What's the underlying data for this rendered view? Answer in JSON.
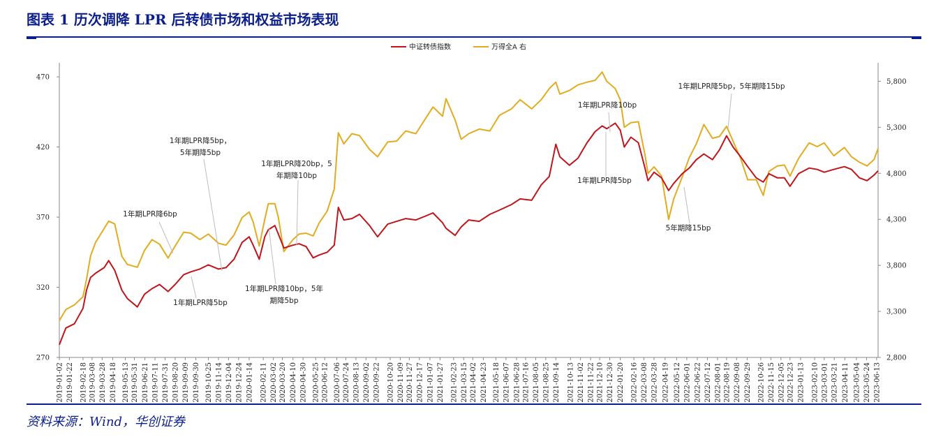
{
  "header": {
    "title": "图表 1  历次调降 LPR 后转债市场和权益市场表现"
  },
  "footer": {
    "source": "资料来源：Wind，华创证券"
  },
  "colors": {
    "cb": "#c0151b",
    "wind": "#e3ac20",
    "accent": "#0b1f8c"
  },
  "chart_data": {
    "type": "line",
    "legend_position": "top-center",
    "grid": false,
    "series": [
      {
        "name": "中证转债指数",
        "axis": "left",
        "points": [
          [
            "2019-01-02",
            279
          ],
          [
            "2019-01-15",
            291
          ],
          [
            "2019-02-01",
            294
          ],
          [
            "2019-02-18",
            305
          ],
          [
            "2019-02-25",
            318
          ],
          [
            "2019-03-05",
            327
          ],
          [
            "2019-03-15",
            330
          ],
          [
            "2019-04-01",
            334
          ],
          [
            "2019-04-10",
            339
          ],
          [
            "2019-04-22",
            332
          ],
          [
            "2019-05-06",
            318
          ],
          [
            "2019-05-17",
            312
          ],
          [
            "2019-06-06",
            306
          ],
          [
            "2019-06-20",
            315
          ],
          [
            "2019-07-05",
            319
          ],
          [
            "2019-07-20",
            322
          ],
          [
            "2019-08-06",
            317
          ],
          [
            "2019-08-20",
            322
          ],
          [
            "2019-09-06",
            329
          ],
          [
            "2019-09-20",
            331
          ],
          [
            "2019-10-08",
            333
          ],
          [
            "2019-10-25",
            336
          ],
          [
            "2019-11-14",
            333
          ],
          [
            "2019-11-29",
            334
          ],
          [
            "2019-12-15",
            340
          ],
          [
            "2019-12-31",
            352
          ],
          [
            "2020-01-14",
            356
          ],
          [
            "2020-01-22",
            350
          ],
          [
            "2020-02-03",
            340
          ],
          [
            "2020-02-14",
            356
          ],
          [
            "2020-02-21",
            361
          ],
          [
            "2020-03-05",
            364
          ],
          [
            "2020-03-12",
            358
          ],
          [
            "2020-03-23",
            348
          ],
          [
            "2020-04-10",
            350
          ],
          [
            "2020-04-22",
            351
          ],
          [
            "2020-05-06",
            349
          ],
          [
            "2020-05-20",
            341
          ],
          [
            "2020-06-01",
            343
          ],
          [
            "2020-06-17",
            345
          ],
          [
            "2020-07-01",
            350
          ],
          [
            "2020-07-09",
            377
          ],
          [
            "2020-07-20",
            368
          ],
          [
            "2020-08-05",
            369
          ],
          [
            "2020-08-20",
            372
          ],
          [
            "2020-09-09",
            364
          ],
          [
            "2020-09-25",
            356
          ],
          [
            "2020-10-15",
            365
          ],
          [
            "2020-11-02",
            367
          ],
          [
            "2020-11-20",
            369
          ],
          [
            "2020-12-10",
            368
          ],
          [
            "2020-12-31",
            371
          ],
          [
            "2021-01-13",
            373
          ],
          [
            "2021-02-01",
            366
          ],
          [
            "2021-02-08",
            362
          ],
          [
            "2021-02-26",
            357
          ],
          [
            "2021-03-10",
            363
          ],
          [
            "2021-03-25",
            368
          ],
          [
            "2021-04-15",
            367
          ],
          [
            "2021-05-06",
            372
          ],
          [
            "2021-05-25",
            375
          ],
          [
            "2021-06-18",
            379
          ],
          [
            "2021-07-05",
            383
          ],
          [
            "2021-07-28",
            382
          ],
          [
            "2021-08-16",
            393
          ],
          [
            "2021-09-01",
            399
          ],
          [
            "2021-09-14",
            422
          ],
          [
            "2021-09-22",
            413
          ],
          [
            "2021-10-11",
            407
          ],
          [
            "2021-10-28",
            412
          ],
          [
            "2021-11-15",
            423
          ],
          [
            "2021-12-01",
            431
          ],
          [
            "2021-12-15",
            435
          ],
          [
            "2021-12-24",
            433
          ],
          [
            "2022-01-10",
            437
          ],
          [
            "2022-01-20",
            432
          ],
          [
            "2022-01-28",
            420
          ],
          [
            "2022-02-10",
            427
          ],
          [
            "2022-02-25",
            423
          ],
          [
            "2022-03-10",
            405
          ],
          [
            "2022-03-16",
            396
          ],
          [
            "2022-03-28",
            402
          ],
          [
            "2022-04-12",
            398
          ],
          [
            "2022-04-26",
            389
          ],
          [
            "2022-05-06",
            394
          ],
          [
            "2022-05-23",
            401
          ],
          [
            "2022-06-06",
            405
          ],
          [
            "2022-06-20",
            411
          ],
          [
            "2022-07-05",
            415
          ],
          [
            "2022-07-22",
            411
          ],
          [
            "2022-08-05",
            418
          ],
          [
            "2022-08-19",
            428
          ],
          [
            "2022-09-01",
            420
          ],
          [
            "2022-09-16",
            413
          ],
          [
            "2022-09-30",
            406
          ],
          [
            "2022-10-17",
            398
          ],
          [
            "2022-10-31",
            395
          ],
          [
            "2022-11-11",
            401
          ],
          [
            "2022-11-28",
            398
          ],
          [
            "2022-12-12",
            398
          ],
          [
            "2022-12-23",
            392
          ],
          [
            "2023-01-09",
            401
          ],
          [
            "2023-01-30",
            405
          ],
          [
            "2023-02-15",
            404
          ],
          [
            "2023-03-01",
            402
          ],
          [
            "2023-03-20",
            404
          ],
          [
            "2023-04-10",
            406
          ],
          [
            "2023-04-24",
            404
          ],
          [
            "2023-05-10",
            398
          ],
          [
            "2023-05-25",
            396
          ],
          [
            "2023-06-08",
            400
          ],
          [
            "2023-06-16",
            403
          ]
        ]
      },
      {
        "name": "万得全A 右",
        "axis": "right",
        "points": [
          [
            "2019-01-02",
            3200
          ],
          [
            "2019-01-15",
            3320
          ],
          [
            "2019-02-01",
            3370
          ],
          [
            "2019-02-18",
            3460
          ],
          [
            "2019-02-25",
            3650
          ],
          [
            "2019-03-05",
            3900
          ],
          [
            "2019-03-15",
            4050
          ],
          [
            "2019-04-01",
            4200
          ],
          [
            "2019-04-10",
            4280
          ],
          [
            "2019-04-22",
            4250
          ],
          [
            "2019-05-06",
            3900
          ],
          [
            "2019-05-17",
            3810
          ],
          [
            "2019-06-06",
            3780
          ],
          [
            "2019-06-20",
            3960
          ],
          [
            "2019-07-05",
            4080
          ],
          [
            "2019-07-20",
            4030
          ],
          [
            "2019-08-06",
            3880
          ],
          [
            "2019-08-20",
            4010
          ],
          [
            "2019-09-06",
            4160
          ],
          [
            "2019-09-20",
            4150
          ],
          [
            "2019-10-08",
            4080
          ],
          [
            "2019-10-25",
            4140
          ],
          [
            "2019-11-14",
            4040
          ],
          [
            "2019-11-29",
            4020
          ],
          [
            "2019-12-15",
            4130
          ],
          [
            "2019-12-31",
            4320
          ],
          [
            "2020-01-14",
            4380
          ],
          [
            "2020-01-22",
            4270
          ],
          [
            "2020-02-03",
            4010
          ],
          [
            "2020-02-14",
            4300
          ],
          [
            "2020-02-21",
            4470
          ],
          [
            "2020-03-05",
            4470
          ],
          [
            "2020-03-12",
            4320
          ],
          [
            "2020-03-23",
            3950
          ],
          [
            "2020-04-10",
            4080
          ],
          [
            "2020-04-22",
            4140
          ],
          [
            "2020-05-06",
            4150
          ],
          [
            "2020-05-20",
            4120
          ],
          [
            "2020-06-01",
            4260
          ],
          [
            "2020-06-17",
            4390
          ],
          [
            "2020-07-01",
            4630
          ],
          [
            "2020-07-09",
            5240
          ],
          [
            "2020-07-20",
            5120
          ],
          [
            "2020-08-05",
            5230
          ],
          [
            "2020-08-20",
            5210
          ],
          [
            "2020-09-09",
            5060
          ],
          [
            "2020-09-25",
            4980
          ],
          [
            "2020-10-15",
            5140
          ],
          [
            "2020-11-02",
            5150
          ],
          [
            "2020-11-20",
            5260
          ],
          [
            "2020-12-10",
            5230
          ],
          [
            "2020-12-31",
            5410
          ],
          [
            "2021-01-13",
            5520
          ],
          [
            "2021-02-01",
            5420
          ],
          [
            "2021-02-08",
            5610
          ],
          [
            "2021-02-26",
            5380
          ],
          [
            "2021-03-10",
            5170
          ],
          [
            "2021-03-25",
            5230
          ],
          [
            "2021-04-15",
            5280
          ],
          [
            "2021-05-06",
            5260
          ],
          [
            "2021-05-25",
            5430
          ],
          [
            "2021-06-18",
            5500
          ],
          [
            "2021-07-05",
            5600
          ],
          [
            "2021-07-28",
            5500
          ],
          [
            "2021-08-16",
            5600
          ],
          [
            "2021-09-01",
            5720
          ],
          [
            "2021-09-14",
            5790
          ],
          [
            "2021-09-22",
            5660
          ],
          [
            "2021-10-11",
            5700
          ],
          [
            "2021-10-28",
            5760
          ],
          [
            "2021-11-15",
            5790
          ],
          [
            "2021-12-01",
            5810
          ],
          [
            "2021-12-15",
            5900
          ],
          [
            "2021-12-24",
            5800
          ],
          [
            "2022-01-10",
            5720
          ],
          [
            "2022-01-20",
            5600
          ],
          [
            "2022-01-28",
            5300
          ],
          [
            "2022-02-10",
            5350
          ],
          [
            "2022-02-25",
            5360
          ],
          [
            "2022-03-10",
            5000
          ],
          [
            "2022-03-16",
            4800
          ],
          [
            "2022-03-28",
            4870
          ],
          [
            "2022-04-12",
            4770
          ],
          [
            "2022-04-26",
            4300
          ],
          [
            "2022-05-06",
            4520
          ],
          [
            "2022-05-23",
            4760
          ],
          [
            "2022-06-06",
            4970
          ],
          [
            "2022-06-20",
            5120
          ],
          [
            "2022-07-05",
            5330
          ],
          [
            "2022-07-22",
            5180
          ],
          [
            "2022-08-05",
            5200
          ],
          [
            "2022-08-19",
            5310
          ],
          [
            "2022-09-01",
            5150
          ],
          [
            "2022-09-16",
            4960
          ],
          [
            "2022-09-30",
            4730
          ],
          [
            "2022-10-17",
            4730
          ],
          [
            "2022-10-31",
            4560
          ],
          [
            "2022-11-11",
            4820
          ],
          [
            "2022-11-28",
            4880
          ],
          [
            "2022-12-12",
            4890
          ],
          [
            "2022-12-23",
            4770
          ],
          [
            "2023-01-09",
            4960
          ],
          [
            "2023-01-30",
            5130
          ],
          [
            "2023-02-15",
            5090
          ],
          [
            "2023-03-01",
            5130
          ],
          [
            "2023-03-20",
            4990
          ],
          [
            "2023-04-10",
            5080
          ],
          [
            "2023-04-24",
            4980
          ],
          [
            "2023-05-10",
            4920
          ],
          [
            "2023-05-25",
            4880
          ],
          [
            "2023-06-08",
            4950
          ],
          [
            "2023-06-16",
            5070
          ]
        ]
      }
    ],
    "y_left": {
      "ticks": [
        270,
        320,
        370,
        420,
        470
      ],
      "ylim": [
        270,
        480
      ]
    },
    "y_right": {
      "ticks": [
        2800,
        3300,
        3800,
        4300,
        4800,
        5300,
        5800
      ],
      "ylim": [
        2800,
        6000
      ]
    },
    "x_ticks": [
      "2019-01-02",
      "2019-01-22",
      "2019-02-18",
      "2019-03-08",
      "2019-03-28",
      "2019-04-18",
      "2019-05-13",
      "2019-05-31",
      "2019-06-21",
      "2019-07-11",
      "2019-07-31",
      "2019-08-20",
      "2019-09-09",
      "2019-09-30",
      "2019-10-25",
      "2019-11-14",
      "2019-12-04",
      "2019-12-24",
      "2020-01-14",
      "2020-02-11",
      "2020-03-02",
      "2020-03-20",
      "2020-04-10",
      "2020-04-30",
      "2020-05-25",
      "2020-06-12",
      "2020-07-06",
      "2020-07-24",
      "2020-08-13",
      "2020-09-02",
      "2020-09-22",
      "2020-10-20",
      "2020-11-09",
      "2020-11-27",
      "2020-12-17",
      "2021-01-07",
      "2021-01-27",
      "2021-02-23",
      "2021-03-15",
      "2021-04-02",
      "2021-04-23",
      "2021-05-18",
      "2021-06-07",
      "2021-06-28",
      "2021-07-16",
      "2021-08-05",
      "2021-08-25",
      "2021-09-14",
      "2021-10-13",
      "2021-11-02",
      "2021-11-22",
      "2021-12-10",
      "2021-12-30",
      "2022-01-20",
      "2022-02-16",
      "2022-03-08",
      "2022-03-28",
      "2022-04-19",
      "2022-05-12",
      "2022-06-01",
      "2022-06-22",
      "2022-07-12",
      "2022-08-01",
      "2022-08-19",
      "2022-09-08",
      "2022-09-29",
      "2022-10-26",
      "2022-11-15",
      "2022-12-05",
      "2022-12-23",
      "2023-01-13",
      "2023-02-10",
      "2023-03-01",
      "2023-03-21",
      "2023-04-11",
      "2023-05-04",
      "2023-05-24",
      "2023-06-13"
    ],
    "annotations": [
      {
        "lines": [
          "1年期LPR降6bp"
        ],
        "date": "2019-08-20"
      },
      {
        "lines": [
          "1年期LPR降5bp，",
          "5年期降5bp"
        ],
        "date": "2019-11-14"
      },
      {
        "lines": [
          "1年期LPR降5bp"
        ],
        "date": "2019-09-20"
      },
      {
        "lines": [
          "1年期LPR降20bp，5",
          "年期降10bp"
        ],
        "date": "2020-04-20"
      },
      {
        "lines": [
          "1年期LPR降10bp，5年",
          "期降5bp"
        ],
        "date": "2020-02-20"
      },
      {
        "lines": [
          "1年期LPR降10bp"
        ],
        "date": "2021-12-20"
      },
      {
        "lines": [
          "1年期LPR降5bp"
        ],
        "date": "2022-01-20"
      },
      {
        "lines": [
          "5年期降15bp"
        ],
        "date": "2022-05-20"
      },
      {
        "lines": [
          "1年期LPR降5bp，5年期降15bp"
        ],
        "date": "2022-08-22"
      }
    ]
  }
}
